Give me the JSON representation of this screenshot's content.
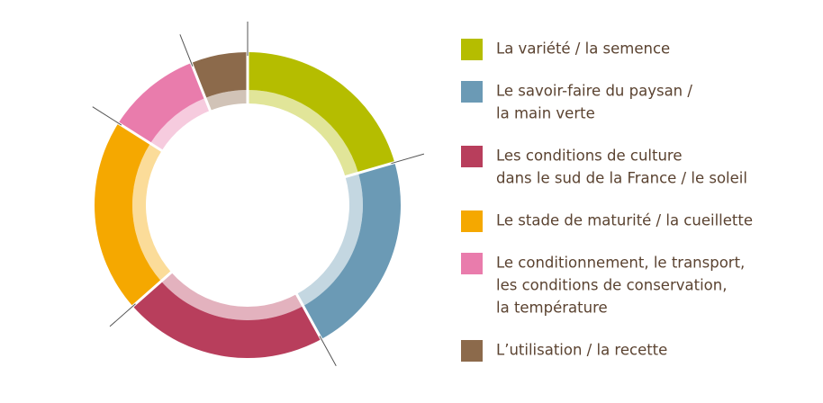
{
  "chart_data": {
    "type": "donut",
    "categories": [
      [
        "La variété / la semence"
      ],
      [
        "Le savoir-faire du paysan /",
        "la main verte"
      ],
      [
        "Les conditions de culture",
        "dans le sud de la France / le soleil"
      ],
      [
        "Le stade de maturité / la cueillette"
      ],
      [
        "Le conditionnement, le transport,",
        "les conditions de conservation,",
        "la température"
      ],
      [
        "L’utilisation / la recette"
      ]
    ],
    "values": [
      20.5,
      21.5,
      21.5,
      20.5,
      10,
      6
    ],
    "colors": [
      "#b5bd00",
      "#6b9ab5",
      "#b83e5c",
      "#f5a800",
      "#e97cac",
      "#8c6a4b"
    ]
  }
}
